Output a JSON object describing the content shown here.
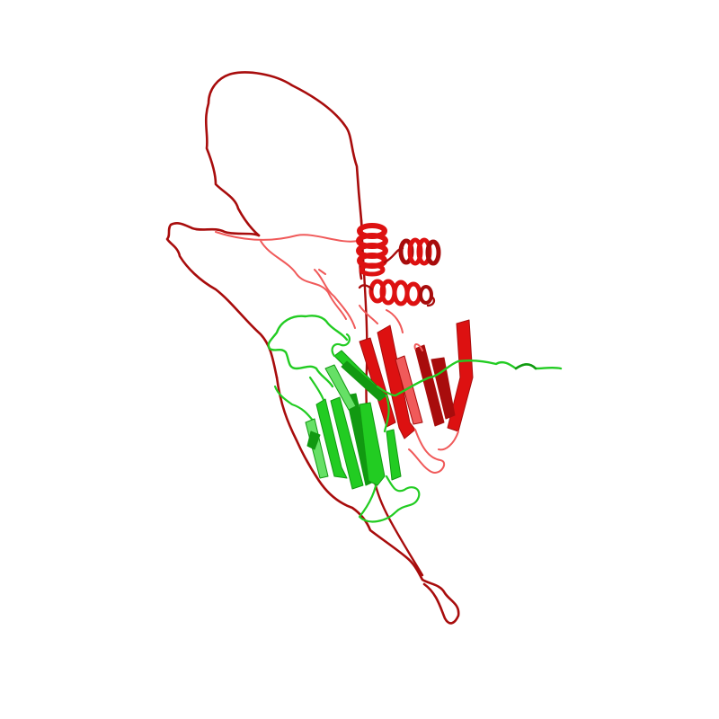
{
  "scene": {
    "background": "#ffffff",
    "chains": [
      {
        "id": "A",
        "color": "#dd1111",
        "shade": "#a80c0c",
        "light": "#f05a5a"
      },
      {
        "id": "B",
        "color": "#22cc22",
        "shade": "#119911",
        "light": "#66e066"
      }
    ]
  }
}
